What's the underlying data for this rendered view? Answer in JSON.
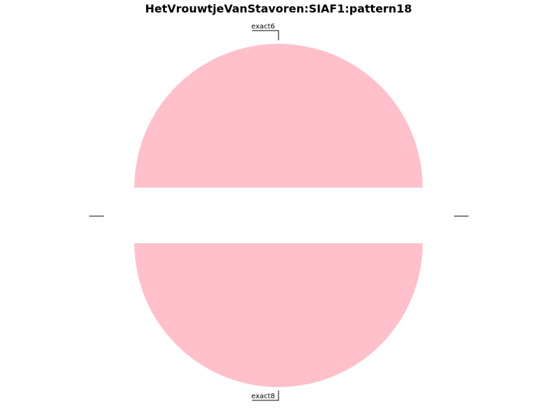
{
  "chart_data": {
    "type": "pie",
    "title": "HetVrouwtjeVanStavoren:SIAF1:pattern18",
    "slices": [
      {
        "label": "exact6",
        "value": 1,
        "color": "#ffc0cb"
      },
      {
        "label": "",
        "value": 0,
        "color": "#ffc0cb"
      },
      {
        "label": "exact8",
        "value": 1,
        "color": "#ffc0cb"
      },
      {
        "label": "",
        "value": 0,
        "color": "#ffc0cb"
      }
    ],
    "legend": "none",
    "grid": false
  }
}
